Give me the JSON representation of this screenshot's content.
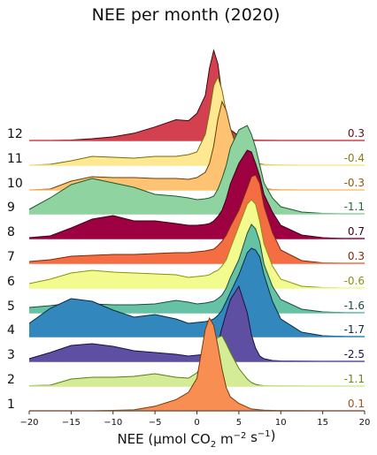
{
  "chart_data": {
    "type": "area",
    "subtype": "ridgeline",
    "title": "NEE per month (2020)",
    "xlabel_parts": [
      "NEE (μmol CO",
      "2",
      " m",
      "−2",
      " s",
      "−1",
      ")"
    ],
    "xlim": [
      -20,
      20
    ],
    "xticks": [
      -20,
      -15,
      -10,
      -5,
      0,
      5,
      10,
      15,
      20
    ],
    "xtick_labels": [
      "−20",
      "−15",
      "−10",
      "−5",
      "0",
      "5",
      "10",
      "15",
      "20"
    ],
    "x_grid": [
      -20,
      -17.5,
      -15,
      -12.5,
      -10,
      -7.5,
      -5,
      -2.5,
      -1,
      0,
      1,
      1.5,
      2,
      2.5,
      3,
      3.5,
      4,
      5,
      6,
      6.5,
      7,
      7.5,
      8,
      9,
      10,
      12.5,
      15,
      17.5,
      20
    ],
    "series": [
      {
        "name": "1",
        "value_label": "0.1",
        "fill": "#f98e52",
        "line": "#7a3a0c",
        "label_color": "#a0511a",
        "density": [
          0,
          0,
          0,
          0,
          0.005,
          0.01,
          0.05,
          0.12,
          0.2,
          0.35,
          0.88,
          1.0,
          0.92,
          0.7,
          0.45,
          0.25,
          0.15,
          0.08,
          0.04,
          0.02,
          0.015,
          0.01,
          0.008,
          0.005,
          0.003,
          0.001,
          0,
          0,
          0
        ]
      },
      {
        "name": "2",
        "value_label": "-1.1",
        "fill": "#d3ec95",
        "line": "#5d7a14",
        "label_color": "#6a8a17",
        "density": [
          0.005,
          0.01,
          0.08,
          0.1,
          0.1,
          0.11,
          0.14,
          0.1,
          0.09,
          0.15,
          0.3,
          0.42,
          0.5,
          0.55,
          0.57,
          0.48,
          0.38,
          0.2,
          0.08,
          0.04,
          0.02,
          0.01,
          0.005,
          0.003,
          0.002,
          0.001,
          0,
          0,
          0
        ]
      },
      {
        "name": "3",
        "value_label": "-2.5",
        "fill": "#5e4fa2",
        "line": "#1a1240",
        "label_color": "#1a1240",
        "density": [
          0.03,
          0.1,
          0.18,
          0.2,
          0.17,
          0.12,
          0.1,
          0.08,
          0.06,
          0.07,
          0.08,
          0.08,
          0.1,
          0.2,
          0.38,
          0.55,
          0.7,
          0.85,
          0.55,
          0.3,
          0.15,
          0.06,
          0.03,
          0.01,
          0.005,
          0.002,
          0,
          0,
          0
        ]
      },
      {
        "name": "4",
        "value_label": "-1.7",
        "fill": "#3288bd",
        "line": "#0a2a40",
        "label_color": "#0a2a40",
        "density": [
          0.15,
          0.32,
          0.43,
          0.4,
          0.3,
          0.22,
          0.25,
          0.2,
          0.15,
          0.16,
          0.17,
          0.18,
          0.2,
          0.24,
          0.3,
          0.4,
          0.5,
          0.7,
          0.95,
          1.0,
          0.98,
          0.9,
          0.7,
          0.4,
          0.2,
          0.05,
          0.01,
          0.002,
          0
        ]
      },
      {
        "name": "5",
        "value_label": "-1.6",
        "fill": "#66c2a5",
        "line": "#1a4d3d",
        "label_color": "#1a4d3d",
        "density": [
          0.06,
          0.08,
          0.11,
          0.1,
          0.09,
          0.09,
          0.1,
          0.14,
          0.12,
          0.1,
          0.11,
          0.12,
          0.13,
          0.16,
          0.2,
          0.28,
          0.4,
          0.6,
          0.9,
          1.0,
          0.95,
          0.8,
          0.55,
          0.3,
          0.15,
          0.04,
          0.01,
          0.002,
          0
        ]
      },
      {
        "name": "6",
        "value_label": "-0.6",
        "fill": "#f3fa8e",
        "line": "#8a9210",
        "label_color": "#8a9210",
        "density": [
          0.05,
          0.1,
          0.17,
          0.2,
          0.18,
          0.17,
          0.16,
          0.15,
          0.12,
          0.13,
          0.14,
          0.15,
          0.18,
          0.2,
          0.25,
          0.32,
          0.45,
          0.7,
          0.95,
          1.0,
          0.95,
          0.75,
          0.5,
          0.25,
          0.1,
          0.02,
          0.005,
          0,
          0
        ]
      },
      {
        "name": "7",
        "value_label": "0.3",
        "fill": "#f46d43",
        "line": "#7a2a0a",
        "label_color": "#7a2a0a",
        "density": [
          0.02,
          0.04,
          0.08,
          0.09,
          0.1,
          0.1,
          0.11,
          0.12,
          0.12,
          0.13,
          0.14,
          0.15,
          0.16,
          0.2,
          0.25,
          0.32,
          0.42,
          0.6,
          0.85,
          0.98,
          1.0,
          0.9,
          0.65,
          0.35,
          0.15,
          0.03,
          0.005,
          0,
          0
        ]
      },
      {
        "name": "8",
        "value_label": "0.7",
        "fill": "#9e0142",
        "line": "#3a0018",
        "label_color": "#3a0018",
        "density": [
          0.01,
          0.03,
          0.12,
          0.22,
          0.26,
          0.2,
          0.2,
          0.17,
          0.15,
          0.15,
          0.16,
          0.17,
          0.2,
          0.25,
          0.32,
          0.45,
          0.62,
          0.85,
          1.0,
          0.98,
          0.85,
          0.7,
          0.5,
          0.3,
          0.15,
          0.04,
          0.01,
          0,
          0
        ]
      },
      {
        "name": "9",
        "value_label": "-1.1",
        "fill": "#8fd3a0",
        "line": "#1f5a2c",
        "label_color": "#1f6a3c",
        "density": [
          0.05,
          0.18,
          0.33,
          0.4,
          0.35,
          0.3,
          0.22,
          0.2,
          0.18,
          0.16,
          0.17,
          0.18,
          0.2,
          0.28,
          0.4,
          0.55,
          0.75,
          0.95,
          1.0,
          0.9,
          0.75,
          0.55,
          0.35,
          0.18,
          0.08,
          0.02,
          0.005,
          0,
          0
        ]
      },
      {
        "name": "10",
        "value_label": "-0.3",
        "fill": "#fdc272",
        "line": "#6a3f08",
        "label_color": "#8a5a10",
        "density": [
          0,
          0.01,
          0.1,
          0.15,
          0.14,
          0.14,
          0.13,
          0.13,
          0.12,
          0.14,
          0.2,
          0.3,
          0.5,
          0.8,
          1.0,
          0.9,
          0.7,
          0.4,
          0.2,
          0.1,
          0.05,
          0.03,
          0.015,
          0.005,
          0.002,
          0,
          0,
          0,
          0
        ]
      },
      {
        "name": "11",
        "value_label": "-0.4",
        "fill": "#fee992",
        "line": "#7a6a08",
        "label_color": "#8a7a10",
        "density": [
          0,
          0.01,
          0.05,
          0.1,
          0.09,
          0.08,
          0.1,
          0.1,
          0.12,
          0.15,
          0.35,
          0.6,
          0.9,
          1.0,
          0.85,
          0.6,
          0.4,
          0.22,
          0.1,
          0.05,
          0.03,
          0.015,
          0.008,
          0.004,
          0.002,
          0,
          0,
          0,
          0
        ]
      },
      {
        "name": "12",
        "value_label": "0.3",
        "fill": "#d3404f",
        "line": "#3a0a10",
        "label_color": "#5a1018",
        "density": [
          0,
          0,
          0.005,
          0.02,
          0.04,
          0.08,
          0.15,
          0.23,
          0.22,
          0.3,
          0.5,
          0.8,
          1.0,
          0.85,
          0.5,
          0.25,
          0.12,
          0.05,
          0.02,
          0.01,
          0.005,
          0.003,
          0.002,
          0.001,
          0,
          0,
          0,
          0,
          0
        ]
      }
    ]
  }
}
